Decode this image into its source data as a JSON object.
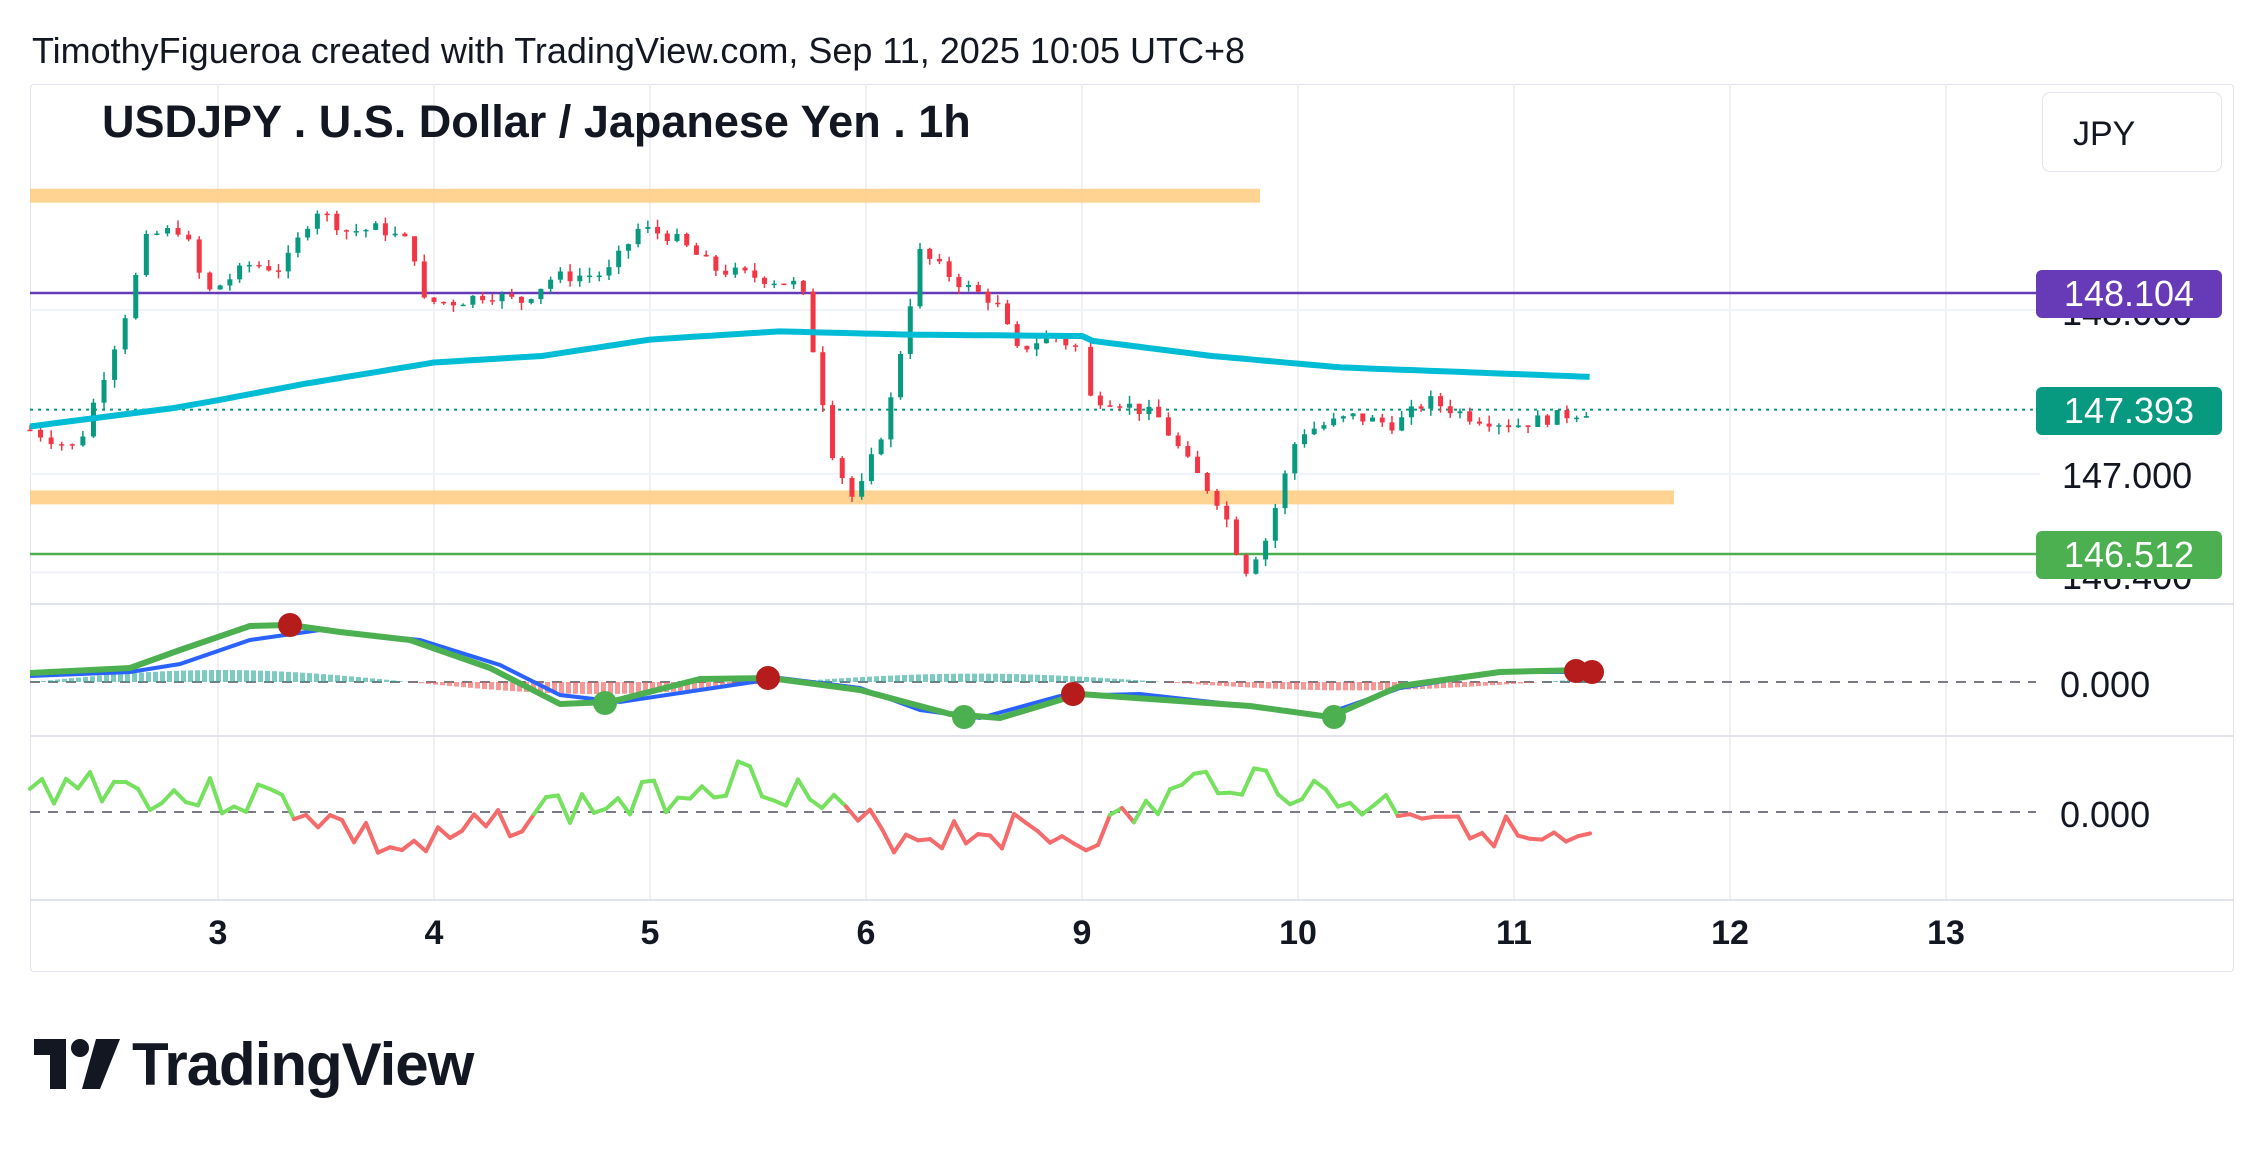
{
  "attribution": "TimothyFigueroa created with TradingView.com, Sep 11, 2025 10:05 UTC+8",
  "symbol_title": "USDJPY . U.S. Dollar / Japanese Yen . 1h",
  "currency": "JPY",
  "brand": "TradingView",
  "brand_icon": "tradingview-logo-icon",
  "colors": {
    "up": "#089981",
    "down": "#f23645",
    "ma": "#00bcd4",
    "purple_line": "#673ab7",
    "green_line": "#4caf50",
    "zone": "#ffcc80",
    "macd_fast": "#2962ff",
    "macd_signal_up": "#4caf50",
    "macd_signal_down": "#b71c1c"
  },
  "price_labels": {
    "purple_level": "148.104",
    "last_price": "147.393",
    "level_147": "147.000",
    "green_level": "146.512",
    "partial_upper": "148.000",
    "partial_lower": "146.400"
  },
  "indicator_labels": {
    "macd_zero": "0.000",
    "osc_zero": "0.000"
  },
  "chart_data": {
    "type": "candlestick",
    "title": "USDJPY . U.S. Dollar / Japanese Yen . 1h",
    "x_ticks": [
      "3",
      "4",
      "5",
      "6",
      "9",
      "10",
      "11",
      "12",
      "13"
    ],
    "y_ticks": [
      147.0
    ],
    "horizontal_levels": [
      {
        "name": "purple",
        "value": 148.104
      },
      {
        "name": "green",
        "value": 146.512
      },
      {
        "name": "last",
        "value": 147.393
      }
    ],
    "zones": [
      {
        "from": 148.67,
        "to": 148.74
      },
      {
        "from": 146.83,
        "to": 146.9
      }
    ],
    "ylim": [
      146.3,
      148.85
    ],
    "price_path": [
      {
        "x": 2.2,
        "y": 147.27
      },
      {
        "x": 2.4,
        "y": 147.15
      },
      {
        "x": 2.5,
        "y": 147.55
      },
      {
        "x": 2.6,
        "y": 147.95
      },
      {
        "x": 2.7,
        "y": 148.45
      },
      {
        "x": 2.85,
        "y": 148.5
      },
      {
        "x": 2.95,
        "y": 148.1
      },
      {
        "x": 3.15,
        "y": 148.28
      },
      {
        "x": 3.3,
        "y": 148.25
      },
      {
        "x": 3.45,
        "y": 148.62
      },
      {
        "x": 3.6,
        "y": 148.48
      },
      {
        "x": 3.75,
        "y": 148.5
      },
      {
        "x": 3.9,
        "y": 148.4
      },
      {
        "x": 3.95,
        "y": 148.05
      },
      {
        "x": 4.1,
        "y": 148.05
      },
      {
        "x": 4.25,
        "y": 148.1
      },
      {
        "x": 4.4,
        "y": 148.05
      },
      {
        "x": 4.55,
        "y": 148.2
      },
      {
        "x": 4.8,
        "y": 148.22
      },
      {
        "x": 4.95,
        "y": 148.5
      },
      {
        "x": 5.1,
        "y": 148.45
      },
      {
        "x": 5.3,
        "y": 148.25
      },
      {
        "x": 5.5,
        "y": 148.2
      },
      {
        "x": 5.7,
        "y": 148.15
      },
      {
        "x": 5.85,
        "y": 147.1
      },
      {
        "x": 5.95,
        "y": 146.82
      },
      {
        "x": 6.1,
        "y": 147.35
      },
      {
        "x": 6.25,
        "y": 148.35
      },
      {
        "x": 6.45,
        "y": 148.15
      },
      {
        "x": 6.6,
        "y": 148.05
      },
      {
        "x": 6.7,
        "y": 147.75
      },
      {
        "x": 6.85,
        "y": 147.85
      },
      {
        "x": 7.0,
        "y": 147.75
      },
      {
        "x": 9.15,
        "y": 147.45
      },
      {
        "x": 9.35,
        "y": 147.35
      },
      {
        "x": 9.5,
        "y": 147.05
      },
      {
        "x": 9.65,
        "y": 146.8
      },
      {
        "x": 9.75,
        "y": 146.4
      },
      {
        "x": 9.85,
        "y": 146.6
      },
      {
        "x": 10.0,
        "y": 147.25
      },
      {
        "x": 10.25,
        "y": 147.35
      },
      {
        "x": 10.45,
        "y": 147.3
      },
      {
        "x": 10.6,
        "y": 147.45
      },
      {
        "x": 10.8,
        "y": 147.35
      },
      {
        "x": 11.0,
        "y": 147.3
      },
      {
        "x": 11.2,
        "y": 147.35
      },
      {
        "x": 11.35,
        "y": 147.39
      }
    ],
    "moving_average": [
      {
        "x": 2.2,
        "y": 147.29
      },
      {
        "x": 2.8,
        "y": 147.4
      },
      {
        "x": 3.4,
        "y": 147.55
      },
      {
        "x": 4.0,
        "y": 147.68
      },
      {
        "x": 4.5,
        "y": 147.72
      },
      {
        "x": 5.0,
        "y": 147.82
      },
      {
        "x": 5.6,
        "y": 147.87
      },
      {
        "x": 6.2,
        "y": 147.85
      },
      {
        "x": 9.0,
        "y": 147.82
      },
      {
        "x": 9.6,
        "y": 147.72
      },
      {
        "x": 10.2,
        "y": 147.65
      },
      {
        "x": 10.8,
        "y": 147.62
      },
      {
        "x": 11.4,
        "y": 147.59
      }
    ]
  }
}
